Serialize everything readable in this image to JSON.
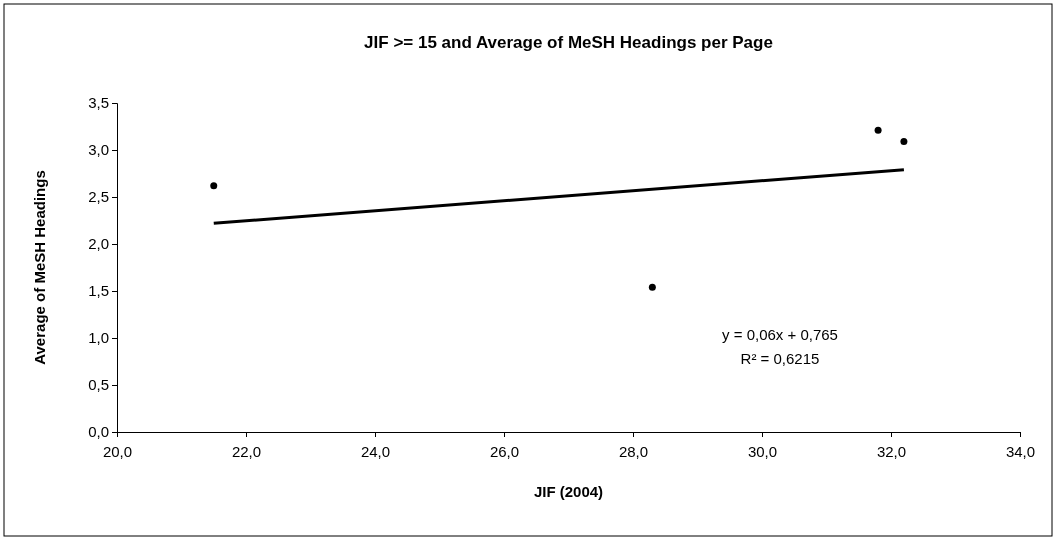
{
  "chart_data": {
    "type": "scatter",
    "title": "JIF >= 15 and Average of MeSH Headings per Page",
    "xlabel": "JIF (2004)",
    "ylabel": "Average of MeSH Headings",
    "xlim": [
      20,
      34
    ],
    "xticks": [
      {
        "value": 20,
        "label": "20,0"
      },
      {
        "value": 22,
        "label": "22,0"
      },
      {
        "value": 24,
        "label": "24,0"
      },
      {
        "value": 26,
        "label": "26,0"
      },
      {
        "value": 28,
        "label": "28,0"
      },
      {
        "value": 30,
        "label": "30,0"
      },
      {
        "value": 32,
        "label": "32,0"
      },
      {
        "value": 34,
        "label": "34,0"
      }
    ],
    "ylim": [
      0,
      3.5
    ],
    "yticks": [
      {
        "value": 0,
        "label": "0,0"
      },
      {
        "value": 0.5,
        "label": "0,5"
      },
      {
        "value": 1,
        "label": "1,0"
      },
      {
        "value": 1.5,
        "label": "1,5"
      },
      {
        "value": 2,
        "label": "2,0"
      },
      {
        "value": 2.5,
        "label": "2,5"
      },
      {
        "value": 3,
        "label": "3,0"
      },
      {
        "value": 3.5,
        "label": "3,5"
      }
    ],
    "grid": false,
    "series": [
      {
        "marker": "circle",
        "color": "#000000",
        "x": [
          21.5,
          28.3,
          31.8,
          32.2
        ],
        "values": [
          2.62,
          1.54,
          3.21,
          3.09
        ]
      },
      {
        "type": "line",
        "color": "#000000",
        "line_style": "solid",
        "x": [
          21.5,
          32.2
        ],
        "values": [
          2.22,
          2.79
        ]
      }
    ],
    "annotations": [
      "y = 0,06x + 0,765",
      "R² = 0,6215"
    ]
  }
}
